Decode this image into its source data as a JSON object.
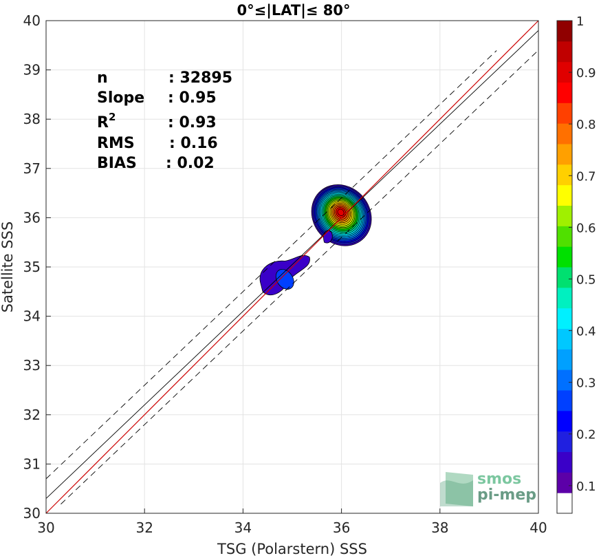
{
  "chart_data": {
    "type": "heatmap",
    "title": "0°≤|LAT|≤ 80°",
    "xlabel": "TSG (Polarstern) SSS",
    "ylabel": "Satellite SSS",
    "xlim": [
      30,
      40
    ],
    "ylim": [
      30,
      40
    ],
    "xticks": [
      "30",
      "32",
      "34",
      "36",
      "38",
      "40"
    ],
    "yticks": [
      "30",
      "31",
      "32",
      "33",
      "34",
      "35",
      "36",
      "37",
      "38",
      "39",
      "40"
    ],
    "grid": true,
    "stats": [
      {
        "label": "n",
        "sep": ": ",
        "value": "32895",
        "sup": ""
      },
      {
        "label": "Slope",
        "sep": ": ",
        "value": "0.95",
        "sup": ""
      },
      {
        "label": "R",
        "sep": ": ",
        "value": "0.93",
        "sup": "2"
      },
      {
        "label": "RMS",
        "sep": ": ",
        "value": "0.16",
        "sup": ""
      },
      {
        "label": "BIAS",
        "sep": ": ",
        "value": "0.02",
        "sup": ""
      }
    ],
    "lines": {
      "identity": {
        "slope": 1.0,
        "intercept": 0.0,
        "color": "#cc0000"
      },
      "fit": {
        "slope": 0.95,
        "intercept": 1.8
      },
      "fit_band_offset": 0.4
    },
    "density_peaks": [
      {
        "x": 36.0,
        "y": 36.05,
        "peak": 1.0
      },
      {
        "x": 34.85,
        "y": 34.75,
        "peak": 0.2
      }
    ],
    "colorbar": {
      "range": [
        0,
        1
      ],
      "ticks": [
        "0.1",
        "0.2",
        "0.3",
        "0.4",
        "0.5",
        "0.6",
        "0.7",
        "0.8",
        "0.9",
        "1"
      ],
      "levels": [
        "#ffffff",
        "#5c00a8",
        "#3a00c8",
        "#2020e0",
        "#0000ff",
        "#0040ff",
        "#0070ff",
        "#00a0ff",
        "#00c8ff",
        "#00f0ff",
        "#00f0c0",
        "#00e070",
        "#00e000",
        "#50e000",
        "#a0f000",
        "#ffff00",
        "#ffd000",
        "#ffa000",
        "#ff7000",
        "#ff4000",
        "#ff0000",
        "#e00000",
        "#c00000",
        "#900000"
      ]
    }
  },
  "watermark": {
    "line1": "smos",
    "line2": "pi-mep"
  }
}
